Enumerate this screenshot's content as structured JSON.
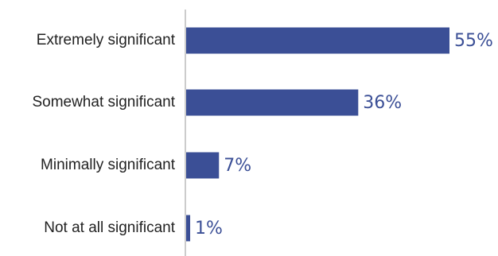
{
  "chart_data": {
    "type": "bar",
    "orientation": "horizontal",
    "title": "",
    "xlabel": "",
    "ylabel": "",
    "categories": [
      "Extremely significant",
      "Somewhat significant",
      "Minimally significant",
      "Not at all significant"
    ],
    "values": [
      55,
      36,
      7,
      1
    ],
    "value_labels": [
      "55%",
      "36%",
      "7%",
      "1%"
    ],
    "unit": "%",
    "xlim": [
      0,
      60
    ],
    "grid": false,
    "legend": "none",
    "colors": {
      "bar": "#3b4f96",
      "value_label": "#3b4f96",
      "axis": "#cccccc"
    }
  }
}
